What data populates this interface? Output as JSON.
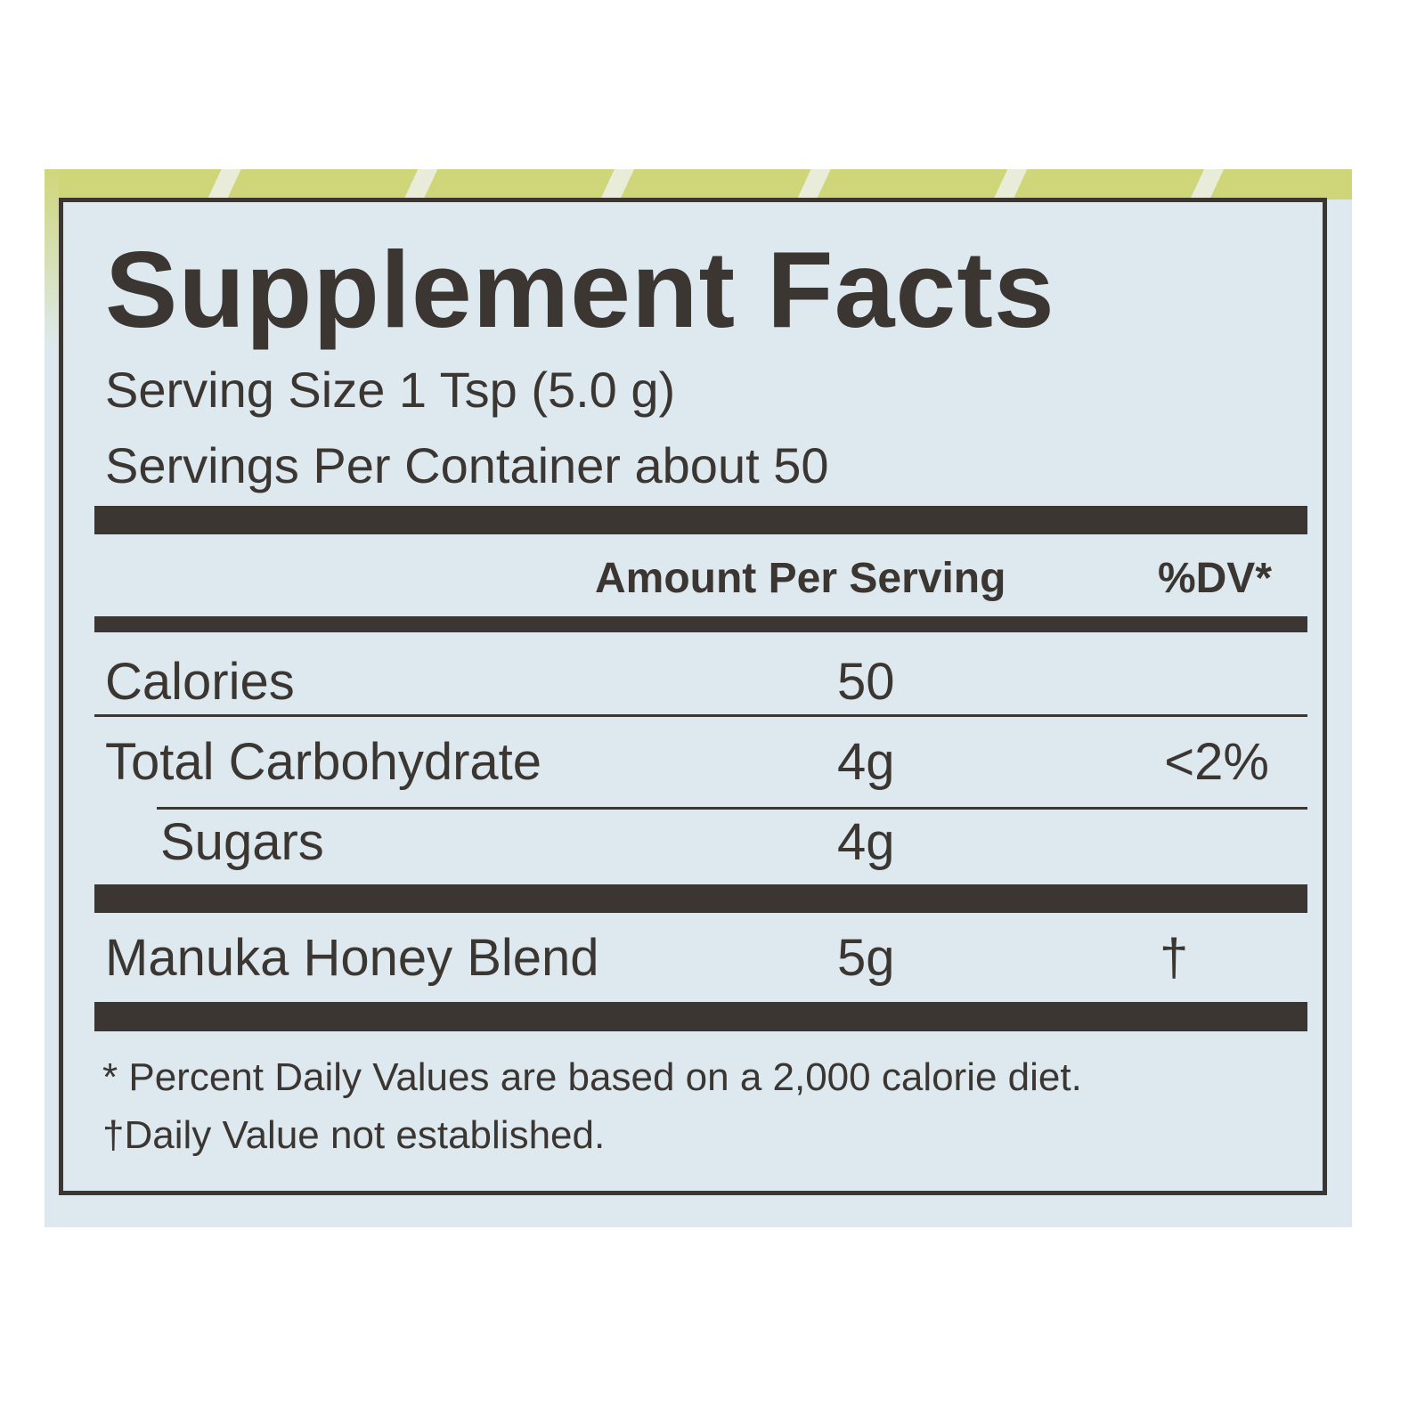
{
  "title": "Supplement Facts",
  "serving_size": "Serving Size 1 Tsp (5.0 g)",
  "servings_per_container": "Servings Per Container about 50",
  "header": {
    "amount": "Amount Per Serving",
    "dv": "%DV*"
  },
  "rows": [
    {
      "name": "Calories",
      "amount": "50",
      "dv": ""
    },
    {
      "name": "Total Carbohydrate",
      "amount": "4g",
      "dv": "<2%"
    },
    {
      "name": "Sugars",
      "amount": "4g",
      "dv": ""
    },
    {
      "name": "Manuka Honey Blend",
      "amount": "5g",
      "dv": "†"
    }
  ],
  "footnotes": [
    "* Percent Daily Values are based on a 2,000 calorie diet.",
    "†Daily Value not established."
  ],
  "colors": {
    "ink": "#3b3631",
    "background": "#dde9ee",
    "accent": "#cfd67a"
  }
}
